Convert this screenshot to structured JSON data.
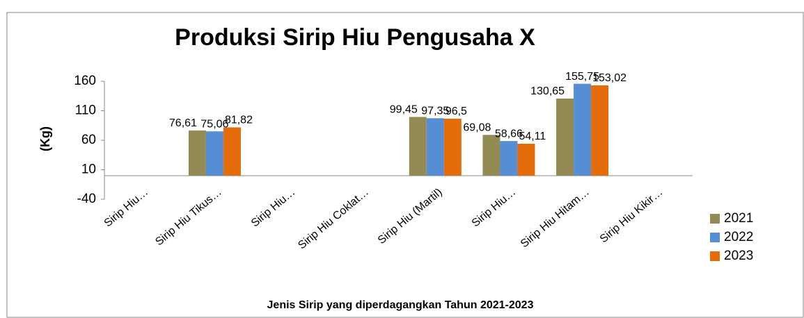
{
  "chart_data": {
    "type": "bar",
    "title": "Produksi Sirip Hiu Pengusaha X",
    "y_label": "(Kg)",
    "x_label": "Jenis Sirip yang diperdagangkan Tahun 2021-2023",
    "categories": [
      "Sirip Hiu…",
      "Sirip Hiu Tikus…",
      "Sirip Hiu…",
      "Sirip Hiu Coklat…",
      "Sirip Hiu (Martil)",
      "Sirip Hiu…",
      "Sirip Hiu Hitam…",
      "Sirip Hiu Kikir…"
    ],
    "series": [
      {
        "name": "2021",
        "color": "#948a54",
        "values": [
          null,
          76.61,
          null,
          null,
          99.45,
          69.08,
          130.65,
          null
        ],
        "value_labels": [
          null,
          "76,61",
          null,
          null,
          "99,45",
          "69,08",
          "130,65",
          null
        ]
      },
      {
        "name": "2022",
        "color": "#558ed5",
        "values": [
          null,
          75.06,
          null,
          null,
          97.35,
          58.66,
          155.75,
          null
        ],
        "value_labels": [
          null,
          "75,06",
          null,
          null,
          "97,35",
          "58,66",
          "155,75",
          null
        ]
      },
      {
        "name": "2023",
        "color": "#e46c0a",
        "values": [
          null,
          81.82,
          null,
          null,
          96.5,
          54.11,
          153.02,
          null
        ],
        "value_labels": [
          null,
          "81,82",
          null,
          null,
          "96,5",
          "54,11",
          "153,02",
          null
        ]
      }
    ],
    "ylim": [
      -40,
      160
    ],
    "yticks": [
      -40,
      10,
      60,
      110,
      160
    ],
    "grid": false,
    "legend": "right"
  }
}
